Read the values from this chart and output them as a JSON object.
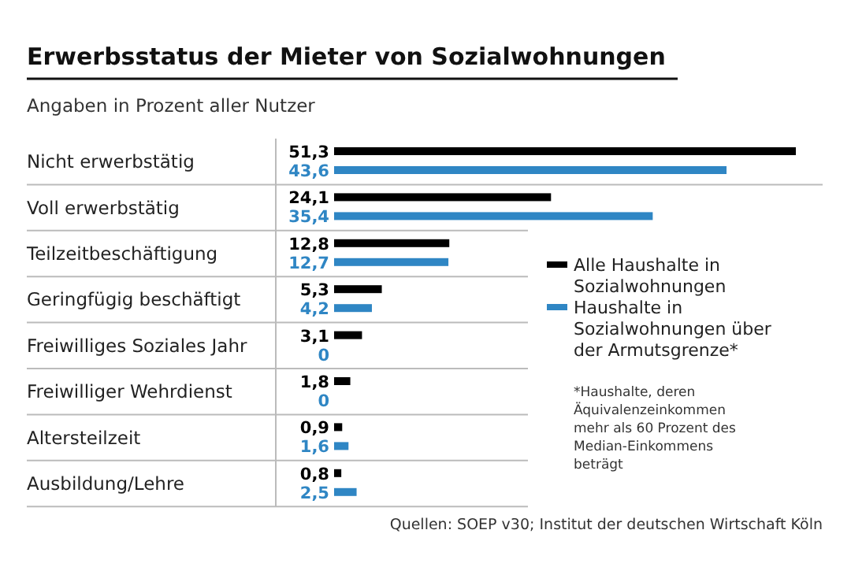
{
  "chart_data": {
    "type": "bar",
    "orientation": "horizontal",
    "title": "Erwerbsstatus der Mieter von Sozialwohnungen",
    "subtitle": "Angaben in Prozent aller Nutzer",
    "categories": [
      "Nicht erwerbstätig",
      "Voll erwerbstätig",
      "Teilzeitbeschäftigung",
      "Geringfügig beschäftigt",
      "Freiwilliges Soziales Jahr",
      "Freiwilliger Wehrdienst",
      "Altersteilzeit",
      "Ausbildung/Lehre"
    ],
    "series": [
      {
        "name": "Alle Haushalte in Sozialwohnungen",
        "color": "#000000",
        "values": [
          51.3,
          24.1,
          12.8,
          5.3,
          3.1,
          1.8,
          0.9,
          0.8
        ],
        "value_labels": [
          "51,3",
          "24,1",
          "12,8",
          "5,3",
          "3,1",
          "1,8",
          "0,9",
          "0,8"
        ]
      },
      {
        "name": "Haushalte in Sozialwohnungen über der Armutsgrenze*",
        "color": "#2f86c4",
        "values": [
          43.6,
          35.4,
          12.7,
          4.2,
          0,
          0,
          1.6,
          2.5
        ],
        "value_labels": [
          "43,6",
          "35,4",
          "12,7",
          "4,2",
          "0",
          "0",
          "1,6",
          "2,5"
        ]
      }
    ],
    "legend": "right",
    "annotations": [
      "*Haushalte, deren Äquivalenzeinkommen mehr als 60 Prozent des Median-Einkommens beträgt",
      "Quellen: SOEP v30; Institut der deutschen Wirtschaft Köln"
    ]
  }
}
